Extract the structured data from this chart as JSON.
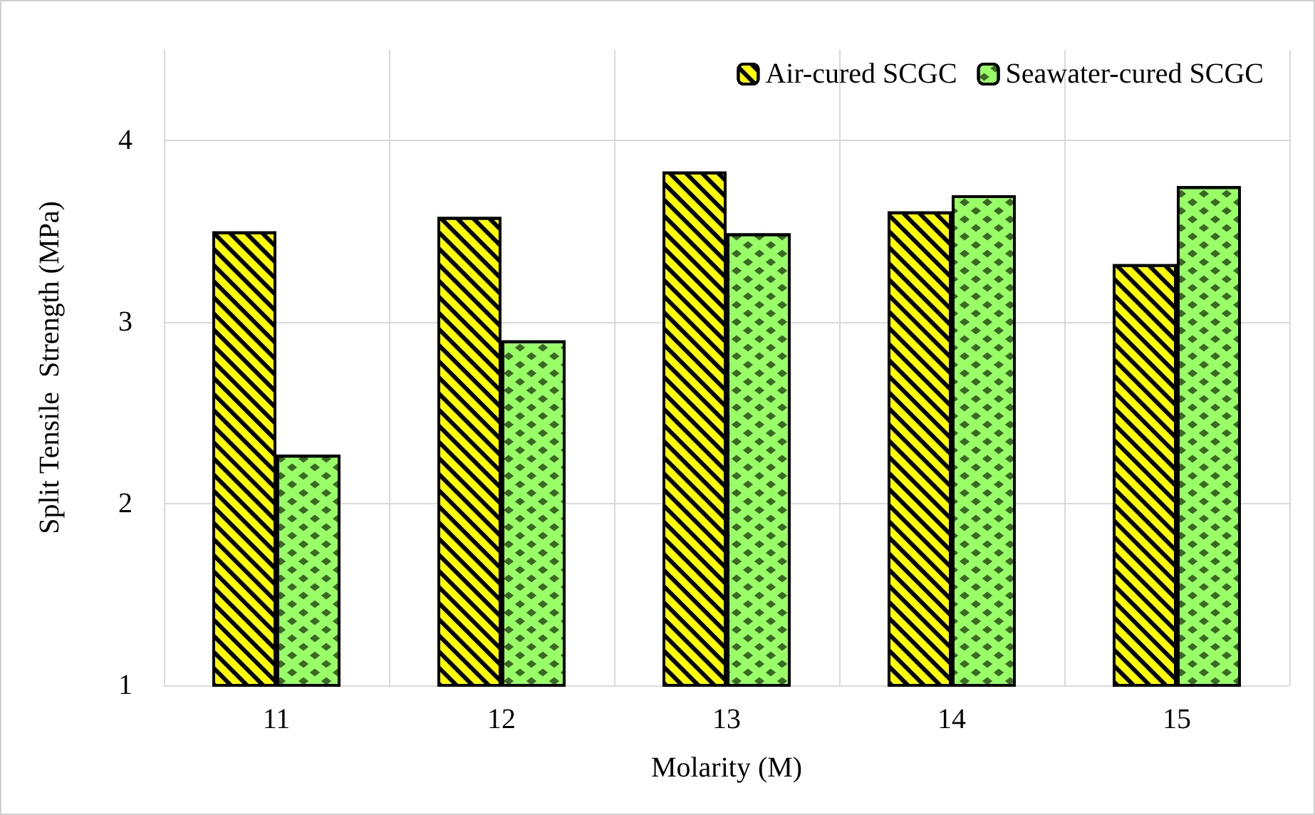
{
  "chart_data": {
    "type": "bar",
    "xlabel": "Molarity (M)",
    "ylabel": "Split Tensile  Strength (MPa)",
    "categories": [
      "11",
      "12",
      "13",
      "14",
      "15"
    ],
    "series": [
      {
        "name": "Air-cured SCGC",
        "color": "#ffff00",
        "values": [
          3.5,
          3.58,
          3.83,
          3.61,
          3.32
        ]
      },
      {
        "name": "Seawater-cured SCGC",
        "color": "#99ff66",
        "values": [
          2.27,
          2.9,
          3.49,
          3.7,
          3.75
        ]
      }
    ],
    "ylim": [
      1,
      4.5
    ],
    "yticks": [
      1,
      2,
      3,
      4
    ],
    "grid": true,
    "legend": "top right"
  }
}
